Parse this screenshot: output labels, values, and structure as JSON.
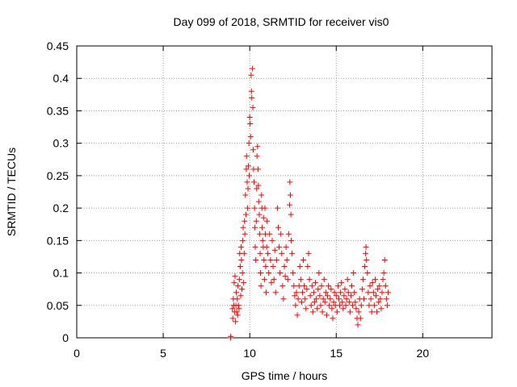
{
  "chart_data": {
    "type": "scatter",
    "title": "Day 099 of 2018, SRMTID for receiver vis0",
    "xlabel": "GPS time / hours",
    "ylabel": "SRMTID / TECUs",
    "xlim": [
      0,
      24
    ],
    "ylim": [
      0,
      0.45
    ],
    "x_ticks": [
      0,
      5,
      10,
      15,
      20
    ],
    "x_tick_labels": [
      "0",
      "5",
      "10",
      "15",
      "20"
    ],
    "y_ticks": [
      0,
      0.05,
      0.1,
      0.15,
      0.2,
      0.25,
      0.3,
      0.35,
      0.4,
      0.45
    ],
    "y_tick_labels": [
      "0",
      "0.05",
      "0.1",
      "0.15",
      "0.2",
      "0.25",
      "0.3",
      "0.35",
      "0.4",
      "0.45"
    ],
    "grid": true,
    "legend": "none",
    "marker": "+",
    "color": "#ff0000",
    "points": [
      [
        8.9,
        0.0
      ],
      [
        8.9,
        0.002
      ],
      [
        9.0,
        0.045
      ],
      [
        9.02,
        0.03
      ],
      [
        9.05,
        0.06
      ],
      [
        9.08,
        0.05
      ],
      [
        9.1,
        0.085
      ],
      [
        9.12,
        0.04
      ],
      [
        9.15,
        0.095
      ],
      [
        9.18,
        0.025
      ],
      [
        9.2,
        0.05
      ],
      [
        9.22,
        0.07
      ],
      [
        9.25,
        0.04
      ],
      [
        9.28,
        0.06
      ],
      [
        9.3,
        0.035
      ],
      [
        9.32,
        0.08
      ],
      [
        9.35,
        0.05
      ],
      [
        9.38,
        0.045
      ],
      [
        9.4,
        0.09
      ],
      [
        9.42,
        0.13
      ],
      [
        9.45,
        0.11
      ],
      [
        9.48,
        0.065
      ],
      [
        9.5,
        0.14
      ],
      [
        9.52,
        0.12
      ],
      [
        9.55,
        0.075
      ],
      [
        9.58,
        0.1
      ],
      [
        9.6,
        0.15
      ],
      [
        9.62,
        0.17
      ],
      [
        9.65,
        0.085
      ],
      [
        9.68,
        0.13
      ],
      [
        9.7,
        0.18
      ],
      [
        9.72,
        0.16
      ],
      [
        9.75,
        0.22
      ],
      [
        9.78,
        0.19
      ],
      [
        9.8,
        0.26
      ],
      [
        9.82,
        0.28
      ],
      [
        9.85,
        0.24
      ],
      [
        9.88,
        0.2
      ],
      [
        9.9,
        0.23
      ],
      [
        9.92,
        0.265
      ],
      [
        9.95,
        0.3
      ],
      [
        9.97,
        0.25
      ],
      [
        10.0,
        0.34
      ],
      [
        10.02,
        0.33
      ],
      [
        10.05,
        0.31
      ],
      [
        10.08,
        0.405
      ],
      [
        10.1,
        0.38
      ],
      [
        10.12,
        0.37
      ],
      [
        10.15,
        0.415
      ],
      [
        10.18,
        0.355
      ],
      [
        10.2,
        0.29
      ],
      [
        10.22,
        0.26
      ],
      [
        10.25,
        0.24
      ],
      [
        10.28,
        0.2
      ],
      [
        10.3,
        0.17
      ],
      [
        10.32,
        0.14
      ],
      [
        10.35,
        0.12
      ],
      [
        10.38,
        0.18
      ],
      [
        10.4,
        0.23
      ],
      [
        10.42,
        0.28
      ],
      [
        10.45,
        0.295
      ],
      [
        10.48,
        0.26
      ],
      [
        10.5,
        0.235
      ],
      [
        10.52,
        0.21
      ],
      [
        10.55,
        0.19
      ],
      [
        10.58,
        0.16
      ],
      [
        10.6,
        0.13
      ],
      [
        10.62,
        0.1
      ],
      [
        10.65,
        0.08
      ],
      [
        10.68,
        0.22
      ],
      [
        10.7,
        0.2
      ],
      [
        10.72,
        0.17
      ],
      [
        10.75,
        0.15
      ],
      [
        10.78,
        0.14
      ],
      [
        10.8,
        0.185
      ],
      [
        10.82,
        0.12
      ],
      [
        10.85,
        0.09
      ],
      [
        10.88,
        0.2
      ],
      [
        10.9,
        0.16
      ],
      [
        10.92,
        0.11
      ],
      [
        10.95,
        0.07
      ],
      [
        10.98,
        0.14
      ],
      [
        11.0,
        0.18
      ],
      [
        11.05,
        0.13
      ],
      [
        11.1,
        0.1
      ],
      [
        11.15,
        0.16
      ],
      [
        11.2,
        0.12
      ],
      [
        11.25,
        0.085
      ],
      [
        11.3,
        0.15
      ],
      [
        11.35,
        0.11
      ],
      [
        11.4,
        0.09
      ],
      [
        11.45,
        0.135
      ],
      [
        11.5,
        0.07
      ],
      [
        11.55,
        0.12
      ],
      [
        11.6,
        0.2
      ],
      [
        11.65,
        0.17
      ],
      [
        11.7,
        0.14
      ],
      [
        11.75,
        0.1
      ],
      [
        11.8,
        0.16
      ],
      [
        11.85,
        0.13
      ],
      [
        11.9,
        0.08
      ],
      [
        11.95,
        0.06
      ],
      [
        12.0,
        0.11
      ],
      [
        12.05,
        0.095
      ],
      [
        12.1,
        0.14
      ],
      [
        12.15,
        0.12
      ],
      [
        12.2,
        0.09
      ],
      [
        12.25,
        0.16
      ],
      [
        12.3,
        0.205
      ],
      [
        12.32,
        0.24
      ],
      [
        12.35,
        0.22
      ],
      [
        12.38,
        0.19
      ],
      [
        12.4,
        0.15
      ],
      [
        12.45,
        0.13
      ],
      [
        12.5,
        0.1
      ],
      [
        12.55,
        0.08
      ],
      [
        12.6,
        0.065
      ],
      [
        12.65,
        0.05
      ],
      [
        12.7,
        0.07
      ],
      [
        12.75,
        0.035
      ],
      [
        12.8,
        0.06
      ],
      [
        12.85,
        0.08
      ],
      [
        12.9,
        0.11
      ],
      [
        12.95,
        0.09
      ],
      [
        13.0,
        0.055
      ],
      [
        13.05,
        0.07
      ],
      [
        13.1,
        0.12
      ],
      [
        13.15,
        0.08
      ],
      [
        13.2,
        0.06
      ],
      [
        13.25,
        0.045
      ],
      [
        13.3,
        0.075
      ],
      [
        13.35,
        0.11
      ],
      [
        13.4,
        0.13
      ],
      [
        13.45,
        0.09
      ],
      [
        13.5,
        0.065
      ],
      [
        13.55,
        0.05
      ],
      [
        13.6,
        0.08
      ],
      [
        13.65,
        0.04
      ],
      [
        13.7,
        0.07
      ],
      [
        13.75,
        0.055
      ],
      [
        13.8,
        0.085
      ],
      [
        13.85,
        0.06
      ],
      [
        13.9,
        0.045
      ],
      [
        13.95,
        0.075
      ],
      [
        14.0,
        0.1
      ],
      [
        14.05,
        0.065
      ],
      [
        14.1,
        0.05
      ],
      [
        14.15,
        0.08
      ],
      [
        14.2,
        0.04
      ],
      [
        14.25,
        0.06
      ],
      [
        14.3,
        0.09
      ],
      [
        14.35,
        0.055
      ],
      [
        14.4,
        0.07
      ],
      [
        14.45,
        0.035
      ],
      [
        14.5,
        0.065
      ],
      [
        14.55,
        0.08
      ],
      [
        14.6,
        0.05
      ],
      [
        14.65,
        0.06
      ],
      [
        14.7,
        0.075
      ],
      [
        14.75,
        0.045
      ],
      [
        14.8,
        0.03
      ],
      [
        14.85,
        0.055
      ],
      [
        14.9,
        0.07
      ],
      [
        14.95,
        0.05
      ],
      [
        15.0,
        0.065
      ],
      [
        15.05,
        0.04
      ],
      [
        15.1,
        0.08
      ],
      [
        15.15,
        0.06
      ],
      [
        15.2,
        0.05
      ],
      [
        15.25,
        0.07
      ],
      [
        15.3,
        0.085
      ],
      [
        15.35,
        0.055
      ],
      [
        15.4,
        0.045
      ],
      [
        15.45,
        0.065
      ],
      [
        15.5,
        0.075
      ],
      [
        15.55,
        0.05
      ],
      [
        15.6,
        0.06
      ],
      [
        15.65,
        0.09
      ],
      [
        15.7,
        0.07
      ],
      [
        15.75,
        0.055
      ],
      [
        15.8,
        0.04
      ],
      [
        15.85,
        0.065
      ],
      [
        15.9,
        0.08
      ],
      [
        15.95,
        0.05
      ],
      [
        16.0,
        0.1
      ],
      [
        16.05,
        0.07
      ],
      [
        16.1,
        0.055
      ],
      [
        16.15,
        0.045
      ],
      [
        16.2,
        0.03
      ],
      [
        16.25,
        0.02
      ],
      [
        16.3,
        0.04
      ],
      [
        16.35,
        0.06
      ],
      [
        16.4,
        0.03
      ],
      [
        16.45,
        0.05
      ],
      [
        16.5,
        0.075
      ],
      [
        16.55,
        0.09
      ],
      [
        16.6,
        0.06
      ],
      [
        16.65,
        0.11
      ],
      [
        16.7,
        0.13
      ],
      [
        16.72,
        0.14
      ],
      [
        16.75,
        0.12
      ],
      [
        16.8,
        0.1
      ],
      [
        16.85,
        0.07
      ],
      [
        16.9,
        0.05
      ],
      [
        16.95,
        0.08
      ],
      [
        17.0,
        0.06
      ],
      [
        17.05,
        0.04
      ],
      [
        17.1,
        0.085
      ],
      [
        17.15,
        0.07
      ],
      [
        17.2,
        0.05
      ],
      [
        17.25,
        0.09
      ],
      [
        17.3,
        0.065
      ],
      [
        17.35,
        0.04
      ],
      [
        17.4,
        0.075
      ],
      [
        17.45,
        0.055
      ],
      [
        17.5,
        0.08
      ],
      [
        17.55,
        0.06
      ],
      [
        17.6,
        0.045
      ],
      [
        17.65,
        0.07
      ],
      [
        17.7,
        0.09
      ],
      [
        17.75,
        0.1
      ],
      [
        17.8,
        0.12
      ],
      [
        17.85,
        0.08
      ],
      [
        17.9,
        0.06
      ],
      [
        17.95,
        0.05
      ],
      [
        18.0,
        0.07
      ]
    ]
  }
}
